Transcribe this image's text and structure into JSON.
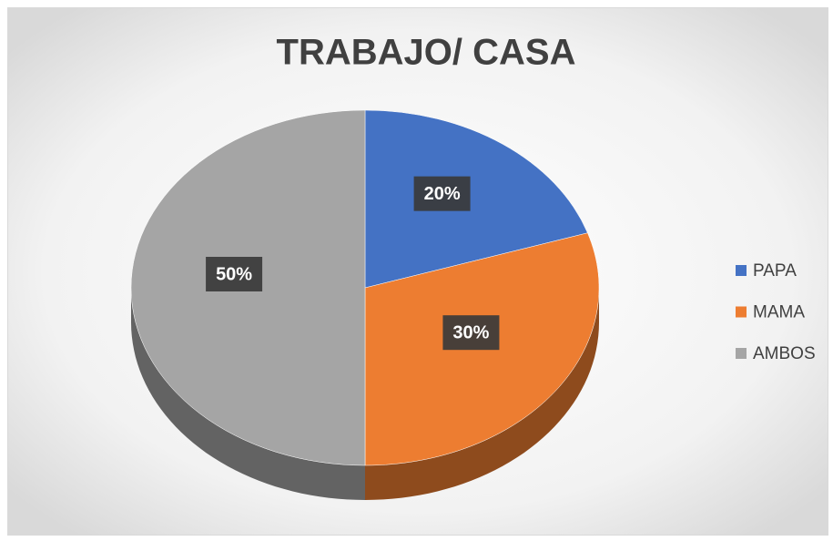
{
  "chart_data": {
    "type": "pie",
    "title": "TRABAJO/ CASA",
    "categories": [
      "PAPA",
      "MAMA",
      "AMBOS"
    ],
    "values": [
      20,
      30,
      50
    ],
    "value_labels": [
      "20%",
      "30%",
      "50%"
    ],
    "colors": [
      "#4472c4",
      "#ed7d31",
      "#a5a5a5"
    ],
    "legend": "right"
  }
}
